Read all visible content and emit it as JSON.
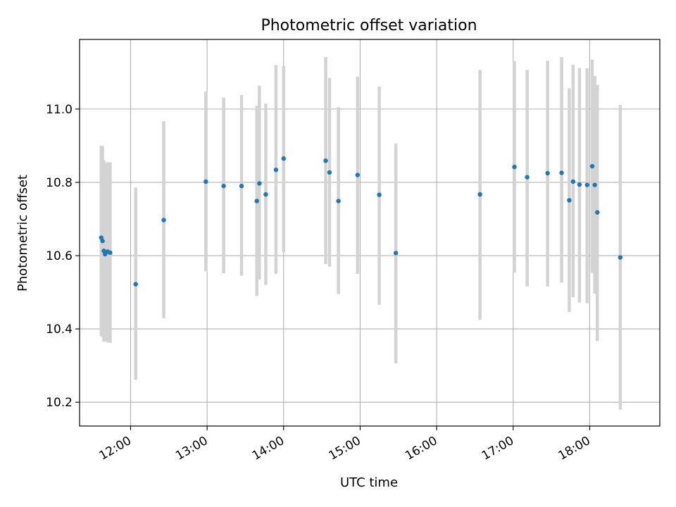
{
  "chart_data": {
    "type": "scatter",
    "title": "Photometric offset variation",
    "xlabel": "UTC time",
    "ylabel": "Photometric offset",
    "xlim": [
      "11:20",
      "18:55"
    ],
    "ylim": [
      10.135,
      11.19
    ],
    "x_ticks": [
      "12:00",
      "13:00",
      "14:00",
      "15:00",
      "16:00",
      "17:00",
      "18:00"
    ],
    "y_ticks": [
      "10.2",
      "10.4",
      "10.6",
      "10.8",
      "11.0"
    ],
    "grid": true,
    "legend": "none",
    "colors": {
      "points": "#1f77b4",
      "errorbars": "#d3d3d3",
      "grid": "#b0b0b0"
    },
    "series": [
      {
        "x": [
          "11:37",
          "11:38",
          "11:39",
          "11:40",
          "11:42",
          "11:44",
          "12:04",
          "12:26",
          "12:59",
          "13:13",
          "13:27",
          "13:39",
          "13:41",
          "13:46",
          "13:54",
          "14:00",
          "14:33",
          "14:36",
          "14:43",
          "14:58",
          "15:15",
          "15:28",
          "16:34",
          "17:01",
          "17:11",
          "17:27",
          "17:38",
          "17:44",
          "17:47",
          "17:52",
          "17:58",
          "18:02",
          "18:04",
          "18:06",
          "18:24"
        ],
        "y": [
          10.649,
          10.64,
          10.613,
          10.604,
          10.611,
          10.608,
          10.522,
          10.697,
          10.802,
          10.79,
          10.79,
          10.749,
          10.797,
          10.767,
          10.834,
          10.865,
          10.859,
          10.827,
          10.749,
          10.82,
          10.766,
          10.607,
          10.767,
          10.842,
          10.814,
          10.825,
          10.826,
          10.751,
          10.802,
          10.794,
          10.793,
          10.844,
          10.793,
          10.718,
          10.595
        ],
        "err_low": [
          10.38,
          10.378,
          10.365,
          10.368,
          10.363,
          10.362,
          10.261,
          10.429,
          10.557,
          10.552,
          10.545,
          10.49,
          10.535,
          10.52,
          10.55,
          10.61,
          10.577,
          10.57,
          10.495,
          10.55,
          10.466,
          10.306,
          10.425,
          10.554,
          10.516,
          10.516,
          10.526,
          10.446,
          10.487,
          10.472,
          10.47,
          10.553,
          10.496,
          10.367,
          10.18
        ],
        "err_high": [
          10.9,
          10.899,
          10.86,
          10.853,
          10.855,
          10.855,
          10.786,
          10.967,
          11.048,
          11.031,
          11.038,
          11.009,
          11.064,
          11.015,
          11.12,
          11.117,
          11.142,
          11.085,
          11.005,
          11.088,
          11.061,
          10.906,
          11.107,
          11.131,
          11.107,
          11.132,
          11.142,
          11.057,
          11.121,
          11.112,
          11.111,
          11.135,
          11.09,
          11.066,
          11.011
        ]
      }
    ]
  }
}
